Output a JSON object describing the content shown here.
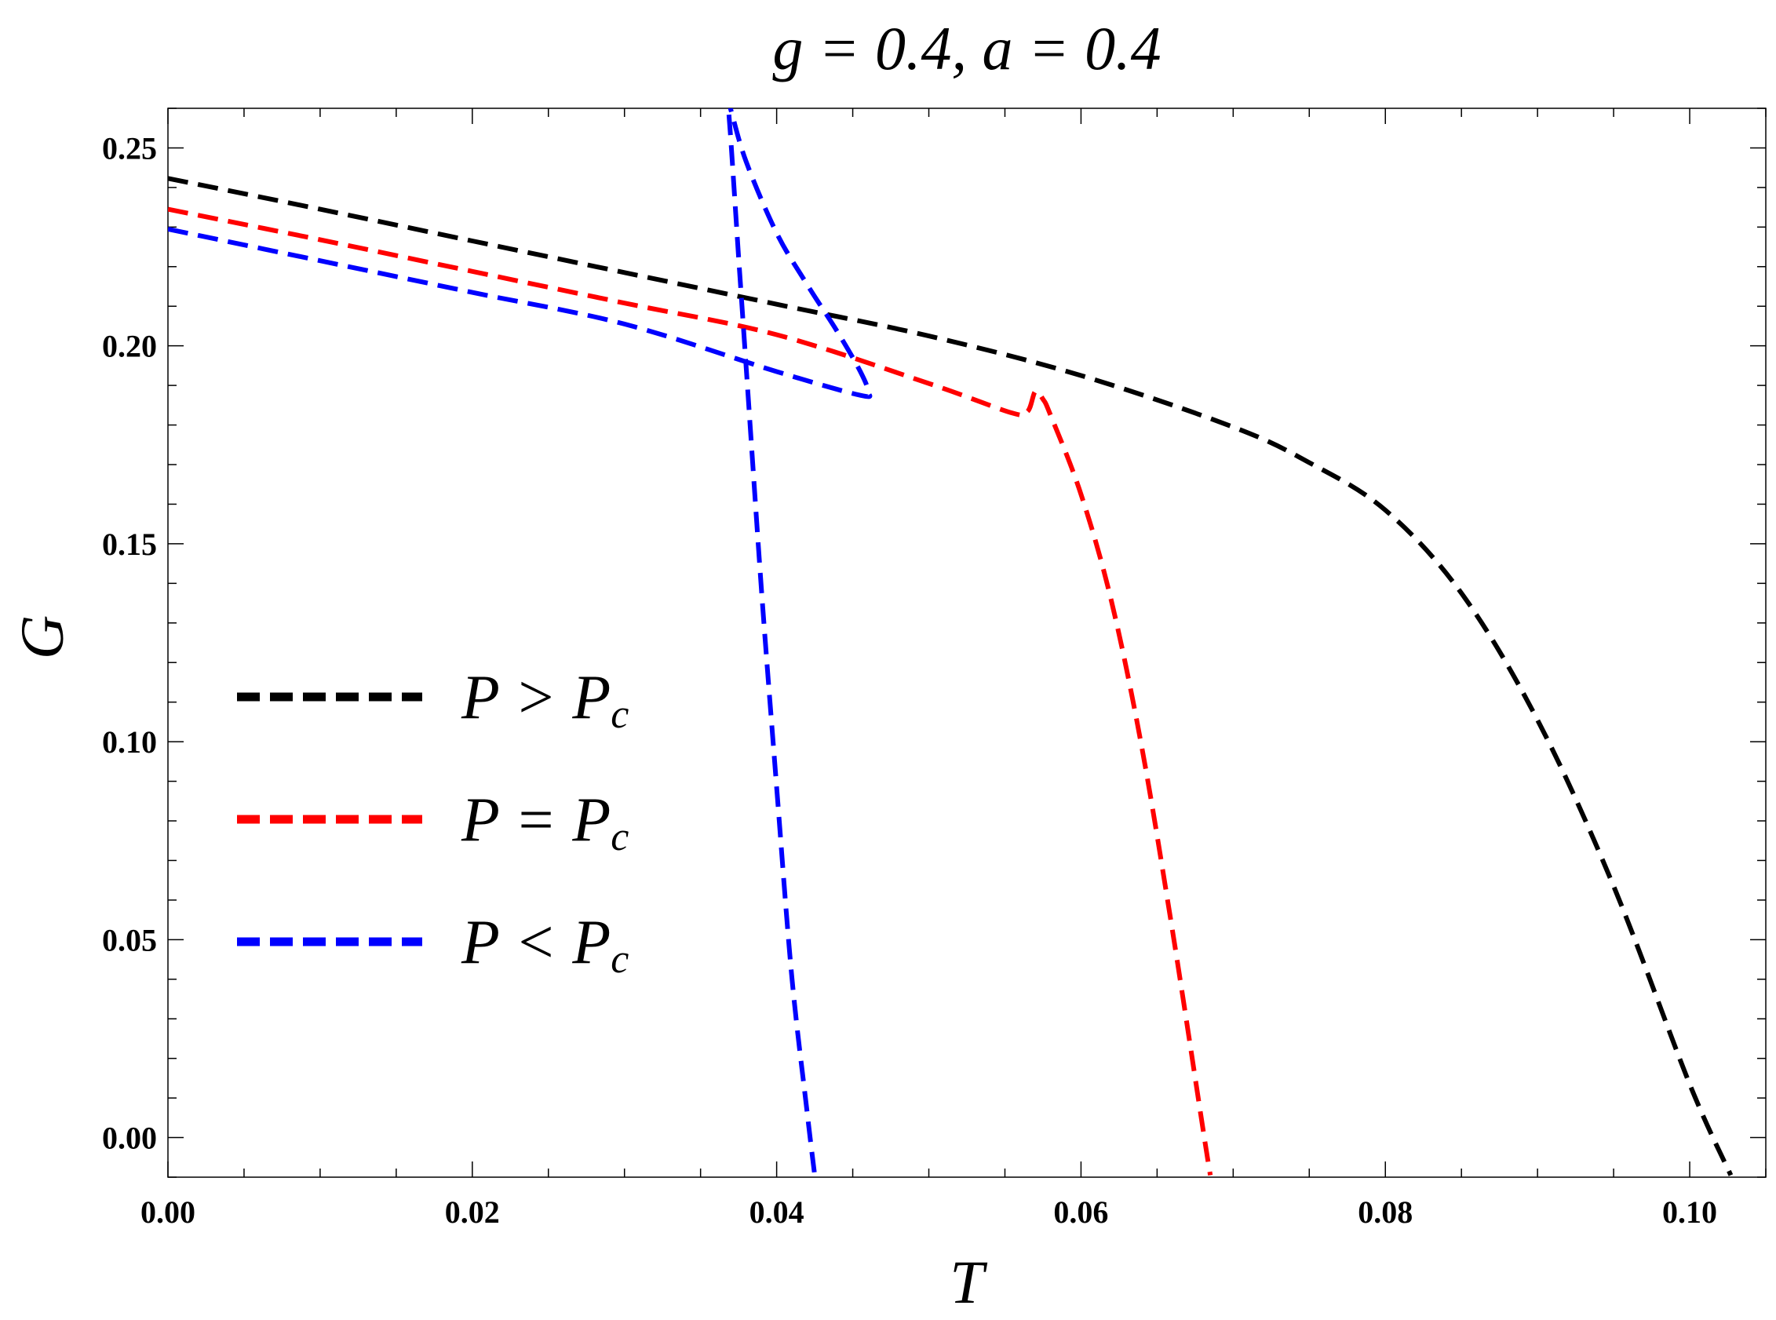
{
  "chart_data": {
    "type": "line",
    "title": "g = 0.4, a = 0.4",
    "xlabel": "T",
    "ylabel": "G",
    "xlim": [
      0,
      0.105
    ],
    "ylim": [
      -0.01,
      0.26
    ],
    "xticks": [
      0.0,
      0.02,
      0.04,
      0.06,
      0.08,
      0.1
    ],
    "xtick_labels": [
      "0.00",
      "0.02",
      "0.04",
      "0.06",
      "0.08",
      "0.10"
    ],
    "yticks": [
      0.0,
      0.05,
      0.1,
      0.15,
      0.2,
      0.25
    ],
    "ytick_labels": [
      "0.00",
      "0.05",
      "0.10",
      "0.15",
      "0.20",
      "0.25"
    ],
    "grid": false,
    "legend_position": "middle-left",
    "series": [
      {
        "name": "P > Pc",
        "legend": {
          "main": "P > P",
          "sub": "c"
        },
        "color": "#000000",
        "x": [
          0.0,
          0.01,
          0.02,
          0.03,
          0.04,
          0.05,
          0.06,
          0.07,
          0.075,
          0.08,
          0.085,
          0.09,
          0.095,
          0.1,
          0.1027
        ],
        "y": [
          0.2423,
          0.2345,
          0.2265,
          0.2185,
          0.2105,
          0.2025,
          0.1925,
          0.1795,
          0.1705,
          0.1585,
          0.1375,
          0.1055,
          0.0635,
          0.0135,
          -0.0095
        ]
      },
      {
        "name": "P = Pc",
        "legend": {
          "main": "P = P",
          "sub": "c"
        },
        "color": "#ff0000",
        "x": [
          0.0,
          0.01,
          0.02,
          0.03,
          0.04,
          0.05,
          0.0555,
          0.0565,
          0.057,
          0.0575,
          0.058,
          0.06,
          0.062,
          0.064,
          0.066,
          0.068,
          0.0685
        ],
        "y": [
          0.2345,
          0.2268,
          0.2188,
          0.2108,
          0.2028,
          0.1905,
          0.183,
          0.1835,
          0.1885,
          0.1865,
          0.1825,
          0.1625,
          0.1355,
          0.0985,
          0.0525,
          0.0025,
          -0.0095
        ]
      },
      {
        "name": "P < Pc",
        "legend": {
          "main": "P < P",
          "sub": "c"
        },
        "color": "#0000ff",
        "x": [
          0.0,
          0.01,
          0.02,
          0.03,
          0.04,
          0.0455,
          0.046,
          0.0455,
          0.044,
          0.042,
          0.04,
          0.038,
          0.037,
          0.0368,
          0.037,
          0.0375,
          0.038,
          0.039,
          0.04,
          0.041,
          0.042,
          0.0425
        ],
        "y": [
          0.2295,
          0.2215,
          0.2135,
          0.2055,
          0.1935,
          0.1875,
          0.1885,
          0.1935,
          0.2035,
          0.2155,
          0.2285,
          0.2465,
          0.2595,
          0.262,
          0.2515,
          0.2225,
          0.1945,
          0.1385,
          0.0885,
          0.0405,
          0.0065,
          -0.0095
        ]
      }
    ]
  }
}
